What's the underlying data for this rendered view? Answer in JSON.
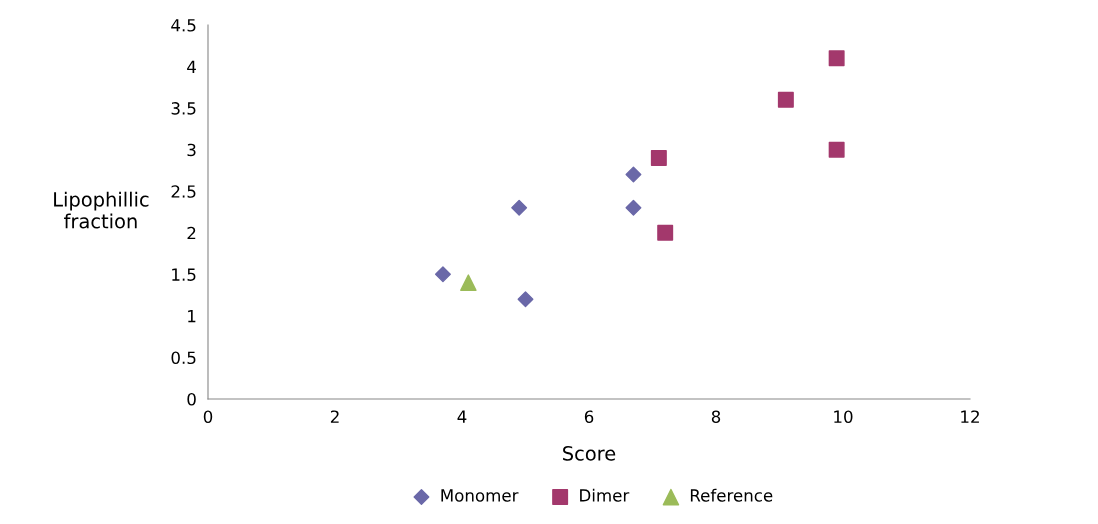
{
  "chart_data": {
    "type": "scatter",
    "xlabel": "Score",
    "ylabel": "Lipophillic\nfraction",
    "xlim": [
      0,
      12
    ],
    "xticks": [
      0,
      2,
      4,
      6,
      8,
      10,
      12
    ],
    "ylim": [
      0,
      4.5
    ],
    "yticks": [
      0,
      0.5,
      1,
      1.5,
      2,
      2.5,
      3,
      3.5,
      4,
      4.5
    ],
    "grid": false,
    "legend": "bottom",
    "series": [
      {
        "name": "Monomer",
        "color": "#6a68a8",
        "marker": "diamond",
        "x": [
          3.7,
          4.9,
          5.0,
          6.7,
          6.7
        ],
        "values": [
          1.5,
          2.3,
          1.2,
          2.7,
          2.3
        ]
      },
      {
        "name": "Dimer",
        "color": "#a3386c",
        "marker": "square",
        "x": [
          7.1,
          7.2,
          9.1,
          9.9,
          9.9
        ],
        "values": [
          2.9,
          2.0,
          3.6,
          4.1,
          3.0
        ]
      },
      {
        "name": "Reference",
        "color": "#9bbb59",
        "marker": "triangle",
        "x": [
          4.1
        ],
        "values": [
          1.4
        ]
      }
    ]
  }
}
